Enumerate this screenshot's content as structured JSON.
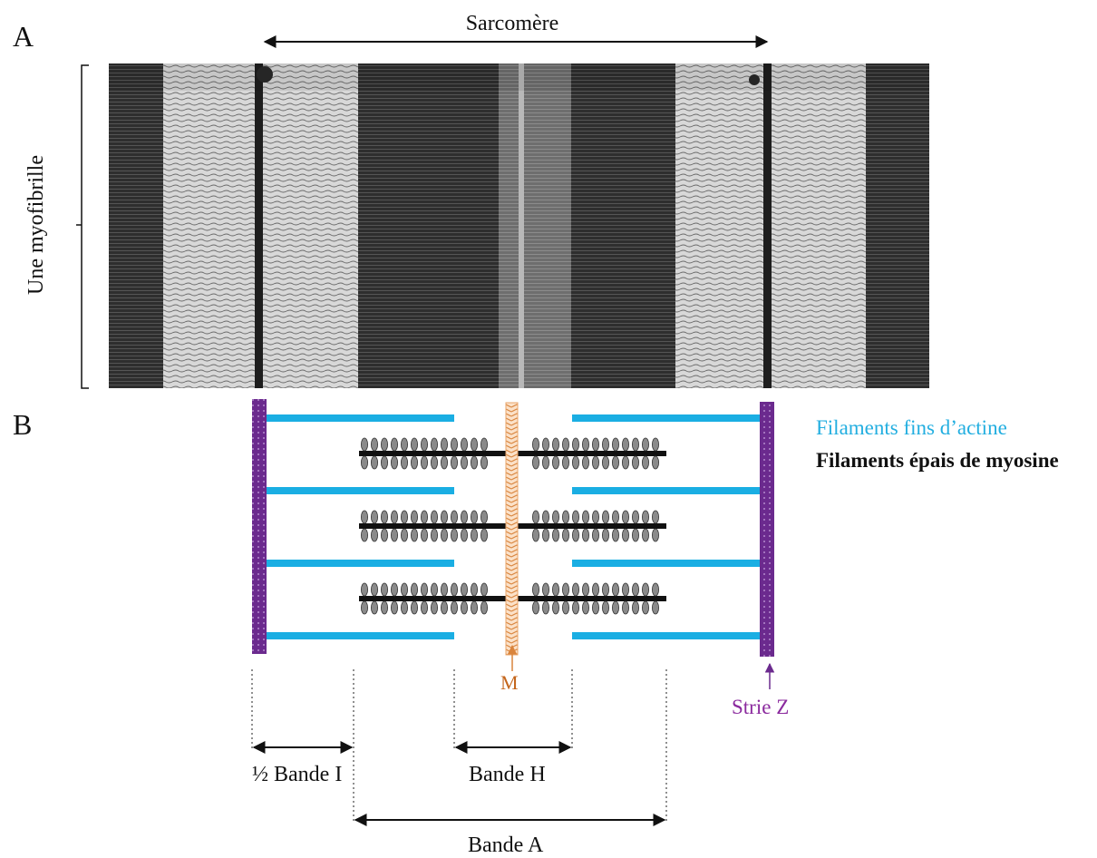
{
  "panel_labels": {
    "a": "A",
    "b": "B"
  },
  "micrograph": {
    "sarcomere_label": "Sarcomère",
    "myofibril_label": "Une myofibrille"
  },
  "legend": {
    "actin": "Filaments fins d’actine",
    "myosin": "Filaments épais de myosine"
  },
  "schematic": {
    "m_line_label": "M",
    "z_line_label": "Strie Z",
    "half_band_i_label": "½ Bande I",
    "band_h_label": "Bande H",
    "band_a_label": "Bande A"
  },
  "colors": {
    "actin": "#1aaee3",
    "myosin": "#111111",
    "z_line": "#6b2a8e",
    "m_line": "#d9843c",
    "z_label": "#8b2a9e",
    "m_label": "#c4661c"
  }
}
